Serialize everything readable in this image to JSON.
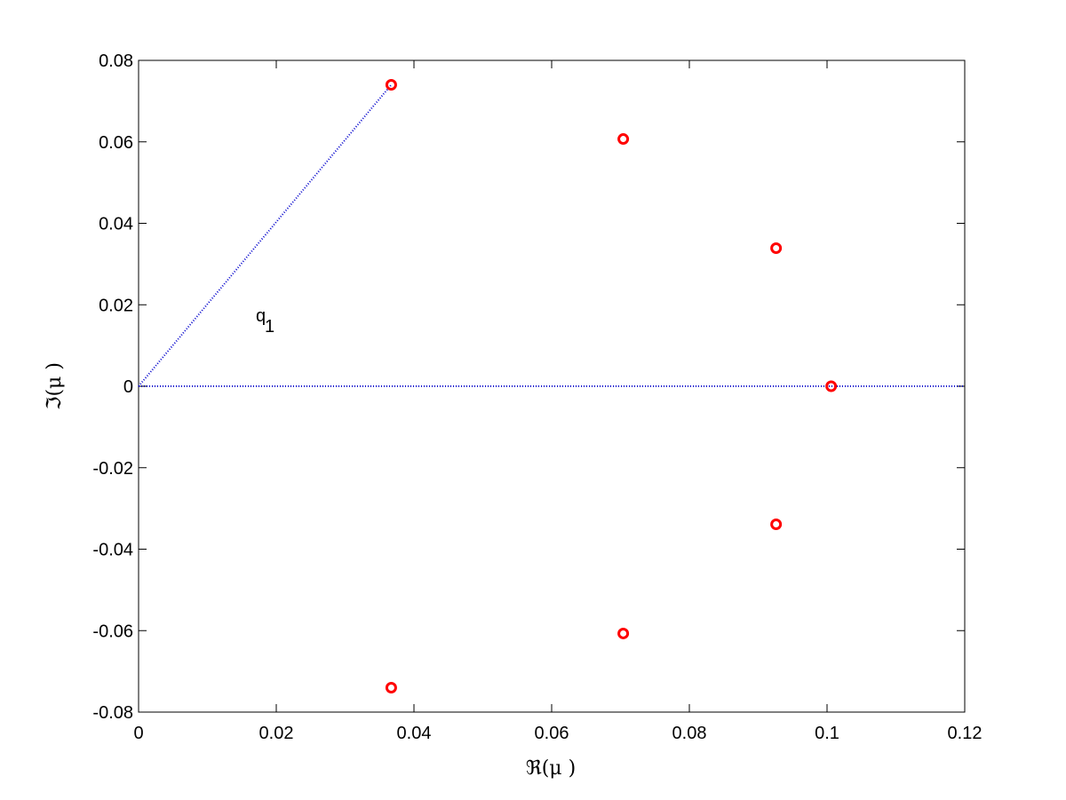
{
  "chart_data": {
    "type": "scatter",
    "xlabel": "ℜ(μ )",
    "ylabel": "ℑ(μ )",
    "annotation": {
      "text": "q",
      "subscript": "1"
    },
    "x": [
      0.0367,
      0.0704,
      0.0926,
      0.1006,
      0.0926,
      0.0704,
      0.0367
    ],
    "values": [
      0.074,
      0.0607,
      0.0339,
      0,
      -0.0339,
      -0.0607,
      -0.074
    ],
    "color": "#ff0000",
    "lines": [
      {
        "color": "#0000cc",
        "x": [
          0,
          0.0367
        ],
        "values": [
          0,
          0.074
        ]
      },
      {
        "color": "#0000cc",
        "x": [
          0,
          0.12
        ],
        "values": [
          0,
          0
        ]
      }
    ],
    "xlim": [
      0,
      0.12
    ],
    "xticks": [
      0,
      0.02,
      0.04,
      0.06,
      0.08,
      0.1,
      0.12
    ],
    "ylim": [
      -0.08,
      0.08
    ],
    "yticks": [
      -0.08,
      -0.06,
      -0.04,
      -0.02,
      0,
      0.02,
      0.04,
      0.06,
      0.08
    ],
    "grid": false
  }
}
